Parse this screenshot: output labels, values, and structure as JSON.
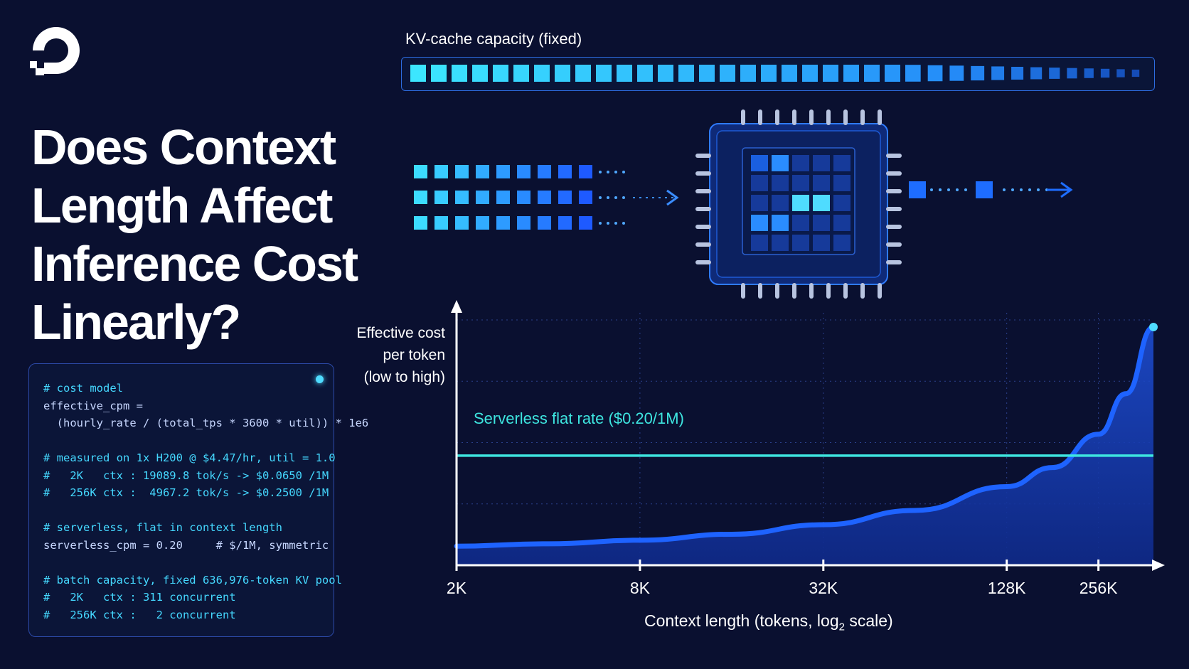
{
  "header": {
    "logo_icon": "digitalocean-logo-icon",
    "title_lines": [
      "Does Context",
      "Length Affect",
      "Inference Cost",
      "Linearly?"
    ]
  },
  "code_panel": {
    "lines": [
      {
        "t": "# cost model",
        "k": "comment"
      },
      {
        "t": "effective_cpm =",
        "k": "code"
      },
      {
        "t": "  (hourly_rate / (total_tps * 3600 * util)) * 1e6",
        "k": "code"
      },
      {
        "t": "",
        "k": "blank"
      },
      {
        "t": "# measured on 1x H200 @ $4.47/hr, util = 1.0",
        "k": "comment"
      },
      {
        "t": "#   2K   ctx : 19089.8 tok/s -> $0.0650 /1M",
        "k": "comment"
      },
      {
        "t": "#   256K ctx :  4967.2 tok/s -> $0.2500 /1M",
        "k": "comment"
      },
      {
        "t": "",
        "k": "blank"
      },
      {
        "t": "# serverless, flat in context length",
        "k": "comment"
      },
      {
        "t": "serverless_cpm = 0.20     # $/1M, symmetric",
        "k": "code"
      },
      {
        "t": "",
        "k": "blank"
      },
      {
        "t": "# batch capacity, fixed 636,976-token KV pool",
        "k": "comment"
      },
      {
        "t": "#   2K   ctx : 311 concurrent",
        "k": "comment"
      },
      {
        "t": "#   256K ctx :   2 concurrent",
        "k": "comment"
      }
    ]
  },
  "kv_cache": {
    "label": "KV-cache capacity (fixed)"
  },
  "colors": {
    "background": "#0a1030",
    "curve": "#1e63ff",
    "flat_rate": "#3ee6e0",
    "accent_cyan": "#4fdcff"
  },
  "chart_data": {
    "type": "line",
    "xlabel_prefix": "Context length (tokens, log",
    "xlabel_sub": "2",
    "xlabel_suffix": " scale)",
    "ylabel_lines": [
      "Effective cost",
      "per token",
      "(low to high)"
    ],
    "x_ticks": [
      "2K",
      "8K",
      "32K",
      "128K",
      "256K"
    ],
    "x_tick_log2": [
      11,
      13,
      15,
      17,
      18
    ],
    "x_max_log2": 18.6,
    "y_scale": "qualitative (low to high)",
    "grid": true,
    "series": [
      {
        "name": "Serverless flat rate ($0.20/1M)",
        "kind": "flat",
        "y": 0.46
      },
      {
        "kind": "curve",
        "x_log2": [
          11,
          12,
          13,
          14,
          15,
          16,
          17,
          17.5,
          18,
          18.3,
          18.6
        ],
        "y": [
          0.08,
          0.09,
          0.105,
          0.13,
          0.17,
          0.23,
          0.33,
          0.41,
          0.55,
          0.72,
          1.0
        ]
      }
    ]
  }
}
